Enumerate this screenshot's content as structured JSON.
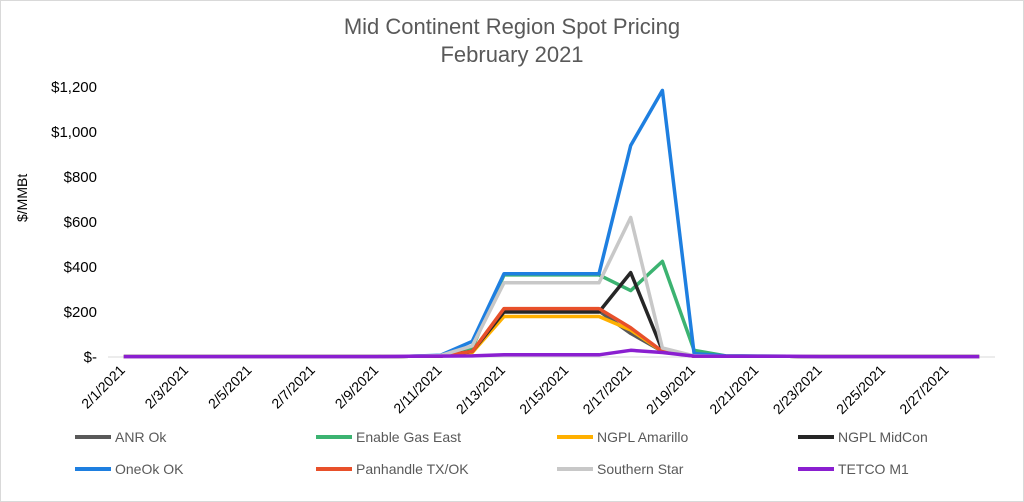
{
  "chart_data": {
    "type": "line",
    "title": "Mid Continent Region Spot Pricing",
    "subtitle": "February 2021",
    "xlabel": "",
    "ylabel": "$/MMBt",
    "ylim": [
      0,
      1200
    ],
    "y_ticks": [
      "$-",
      "$200",
      "$400",
      "$600",
      "$800",
      "$1,000",
      "$1,200"
    ],
    "x": [
      "2/1/2021",
      "2/2/2021",
      "2/3/2021",
      "2/4/2021",
      "2/5/2021",
      "2/6/2021",
      "2/7/2021",
      "2/8/2021",
      "2/9/2021",
      "2/10/2021",
      "2/11/2021",
      "2/12/2021",
      "2/13/2021",
      "2/14/2021",
      "2/15/2021",
      "2/16/2021",
      "2/17/2021",
      "2/18/2021",
      "2/19/2021",
      "2/20/2021",
      "2/21/2021",
      "2/22/2021",
      "2/23/2021",
      "2/24/2021",
      "2/25/2021",
      "2/26/2021",
      "2/27/2021",
      "2/28/2021"
    ],
    "x_tick_labels": [
      "2/1/2021",
      "2/3/2021",
      "2/5/2021",
      "2/7/2021",
      "2/9/2021",
      "2/11/2021",
      "2/13/2021",
      "2/15/2021",
      "2/17/2021",
      "2/19/2021",
      "2/21/2021",
      "2/23/2021",
      "2/25/2021",
      "2/27/2021"
    ],
    "grid": false,
    "legend_position": "bottom",
    "series": [
      {
        "name": "ANR Ok",
        "color": "#595959",
        "values": [
          2,
          2,
          2,
          2,
          2,
          2,
          2,
          2,
          2,
          3,
          4,
          25,
          205,
          205,
          205,
          205,
          105,
          25,
          4,
          3,
          3,
          3,
          2,
          2,
          2,
          2,
          2,
          2
        ]
      },
      {
        "name": "Enable Gas East",
        "color": "#3cb371",
        "values": [
          2,
          2,
          2,
          2,
          2,
          2,
          2,
          2,
          2,
          3,
          5,
          40,
          365,
          365,
          365,
          365,
          295,
          425,
          30,
          5,
          4,
          3,
          2,
          2,
          2,
          2,
          2,
          2
        ]
      },
      {
        "name": "NGPL Amarillo",
        "color": "#ffb000",
        "values": [
          2,
          2,
          2,
          2,
          2,
          2,
          2,
          2,
          2,
          3,
          4,
          20,
          180,
          180,
          180,
          180,
          120,
          25,
          4,
          3,
          3,
          3,
          2,
          2,
          2,
          2,
          2,
          2
        ]
      },
      {
        "name": "NGPL MidCon",
        "color": "#262626",
        "values": [
          2,
          2,
          2,
          2,
          2,
          2,
          2,
          2,
          2,
          3,
          4,
          25,
          200,
          200,
          200,
          200,
          375,
          30,
          4,
          3,
          3,
          3,
          2,
          2,
          2,
          2,
          2,
          2
        ]
      },
      {
        "name": "OneOk OK",
        "color": "#1e7fe0",
        "values": [
          2,
          2,
          2,
          2,
          2,
          2,
          2,
          2,
          2,
          3,
          8,
          70,
          370,
          370,
          370,
          370,
          940,
          1185,
          15,
          5,
          4,
          3,
          2,
          2,
          2,
          2,
          2,
          2
        ]
      },
      {
        "name": "Panhandle TX/OK",
        "color": "#e8502a",
        "values": [
          2,
          2,
          2,
          2,
          2,
          2,
          2,
          2,
          2,
          3,
          4,
          25,
          215,
          215,
          215,
          215,
          130,
          25,
          4,
          3,
          3,
          3,
          2,
          2,
          2,
          2,
          2,
          2
        ]
      },
      {
        "name": "Southern Star",
        "color": "#c8c8c8",
        "values": [
          2,
          2,
          2,
          2,
          2,
          2,
          2,
          2,
          2,
          3,
          6,
          50,
          330,
          330,
          330,
          330,
          620,
          40,
          5,
          3,
          3,
          3,
          2,
          2,
          2,
          2,
          2,
          2
        ]
      },
      {
        "name": "TETCO M1",
        "color": "#8a1fd0",
        "values": [
          2,
          2,
          2,
          2,
          2,
          2,
          2,
          2,
          2,
          3,
          4,
          5,
          10,
          10,
          10,
          10,
          30,
          20,
          4,
          3,
          3,
          3,
          2,
          2,
          2,
          2,
          2,
          2
        ]
      }
    ]
  }
}
